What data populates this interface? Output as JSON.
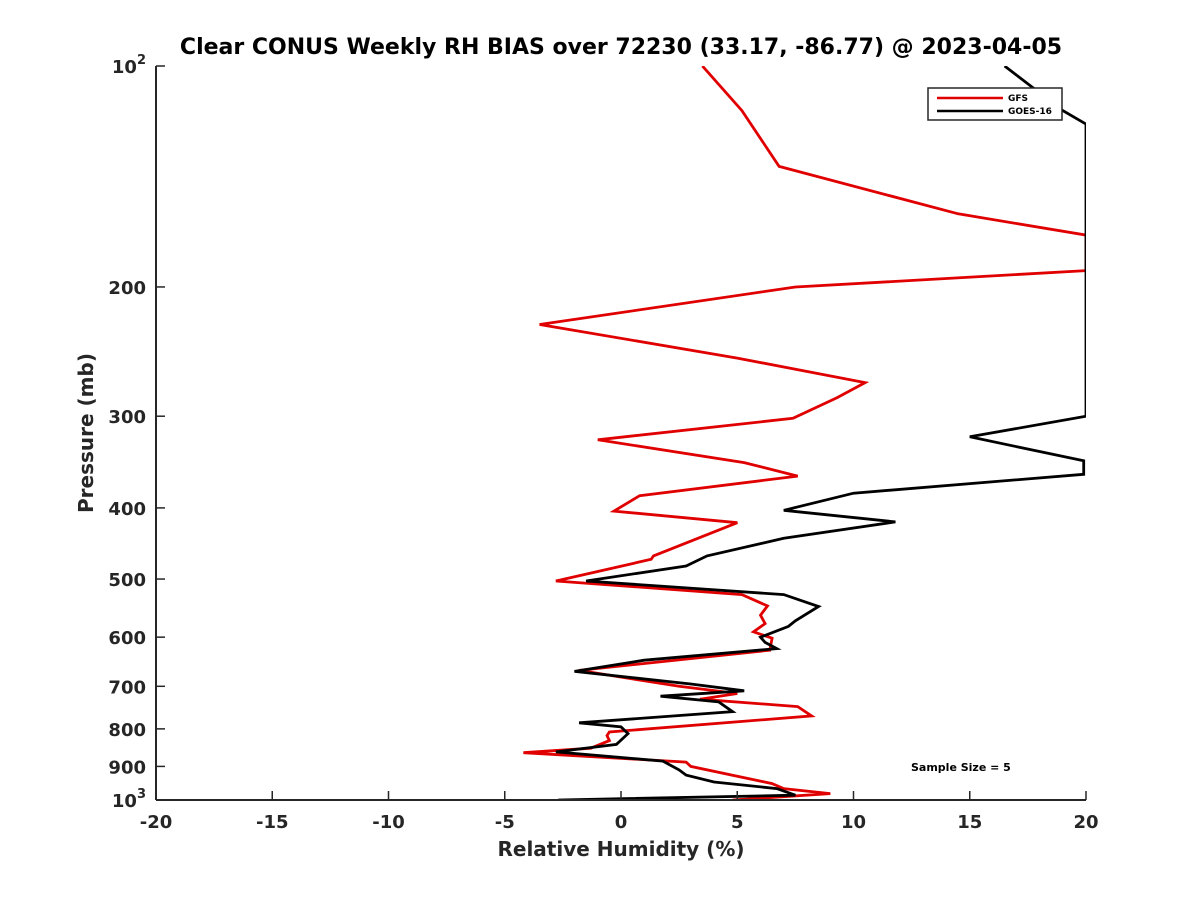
{
  "chart_data": {
    "type": "line",
    "title": "Clear CONUS Weekly RH BIAS over 72230 (33.17, -86.77) @ 2023-04-05",
    "xlabel": "Relative Humidity (%)",
    "ylabel": "Pressure (mb)",
    "xlim": [
      -20,
      20
    ],
    "ylim": [
      100,
      1000
    ],
    "yscale": "log",
    "y_reversed": true,
    "grid": false,
    "legend_position": "top-right",
    "x_ticks": [
      -20,
      -15,
      -10,
      -5,
      0,
      5,
      10,
      15,
      20
    ],
    "x_tick_labels": [
      "-20",
      "-15",
      "-10",
      "-5",
      "0",
      "5",
      "10",
      "15",
      "20"
    ],
    "y_ticks": [
      100,
      200,
      300,
      400,
      500,
      600,
      700,
      800,
      900,
      1000
    ],
    "y_tick_labels": [
      "10²",
      "200",
      "300",
      "400",
      "500",
      "600",
      "700",
      "800",
      "900",
      "10³"
    ],
    "y_tick_special": {
      "100": {
        "base": "10",
        "exp": "2"
      },
      "1000": {
        "base": "10",
        "exp": "3"
      }
    },
    "annotation": "Sample Size = 5",
    "series": [
      {
        "name": "GFS",
        "color": "#e00000",
        "points": [
          [
            3.5,
            100
          ],
          [
            5.2,
            115
          ],
          [
            6.8,
            137
          ],
          [
            14.5,
            159
          ],
          [
            20.0,
            170
          ],
          [
            20.0,
            190
          ],
          [
            7.5,
            200
          ],
          [
            -3.5,
            225
          ],
          [
            5.0,
            250
          ],
          [
            10.5,
            270
          ],
          [
            9.3,
            283
          ],
          [
            7.4,
            302
          ],
          [
            -1.0,
            323
          ],
          [
            5.3,
            347
          ],
          [
            7.6,
            362
          ],
          [
            0.8,
            385
          ],
          [
            -0.3,
            404
          ],
          [
            5.0,
            419
          ],
          [
            1.4,
            465
          ],
          [
            1.3,
            470
          ],
          [
            -2.8,
            503
          ],
          [
            5.2,
            525
          ],
          [
            6.3,
            544
          ],
          [
            6.0,
            560
          ],
          [
            6.2,
            575
          ],
          [
            5.7,
            590
          ],
          [
            6.5,
            602
          ],
          [
            6.4,
            625
          ],
          [
            -1.8,
            666
          ],
          [
            2.5,
            700
          ],
          [
            5.0,
            716
          ],
          [
            3.4,
            729
          ],
          [
            7.6,
            746
          ],
          [
            8.2,
            768
          ],
          [
            -0.5,
            808
          ],
          [
            -0.6,
            817
          ],
          [
            -0.5,
            830
          ],
          [
            -1.3,
            850
          ],
          [
            -4.2,
            862
          ],
          [
            2.8,
            888
          ],
          [
            3.0,
            900
          ],
          [
            6.5,
            950
          ],
          [
            7.0,
            965
          ],
          [
            9.0,
            980
          ],
          [
            4.8,
            1000
          ]
        ]
      },
      {
        "name": "GOES-16",
        "color": "#000000",
        "points": [
          [
            16.5,
            100
          ],
          [
            19.0,
            115
          ],
          [
            20.0,
            120
          ],
          [
            20.0,
            300
          ],
          [
            15.0,
            320
          ],
          [
            19.9,
            345
          ],
          [
            19.9,
            360
          ],
          [
            10.0,
            382
          ],
          [
            7.0,
            403
          ],
          [
            11.8,
            418
          ],
          [
            7.0,
            440
          ],
          [
            3.7,
            465
          ],
          [
            2.8,
            480
          ],
          [
            -1.5,
            503
          ],
          [
            7.0,
            525
          ],
          [
            8.5,
            545
          ],
          [
            7.5,
            570
          ],
          [
            7.2,
            580
          ],
          [
            6.0,
            600
          ],
          [
            6.2,
            610
          ],
          [
            6.7,
            622
          ],
          [
            1.0,
            645
          ],
          [
            -2.0,
            668
          ],
          [
            3.0,
            695
          ],
          [
            5.3,
            710
          ],
          [
            1.7,
            722
          ],
          [
            4.2,
            735
          ],
          [
            4.8,
            758
          ],
          [
            -1.8,
            785
          ],
          [
            0.0,
            795
          ],
          [
            0.3,
            812
          ],
          [
            -0.2,
            840
          ],
          [
            -2.8,
            860
          ],
          [
            1.8,
            885
          ],
          [
            2.5,
            910
          ],
          [
            2.8,
            925
          ],
          [
            4.0,
            945
          ],
          [
            6.7,
            965
          ],
          [
            7.5,
            985
          ],
          [
            -2.7,
            1000
          ]
        ]
      }
    ]
  }
}
